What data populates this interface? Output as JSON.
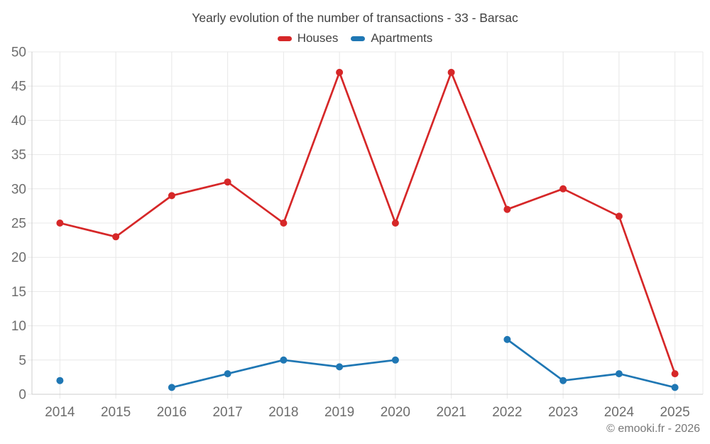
{
  "watermark": "© emooki.fr - 2026",
  "colors": {
    "houses": "#d62728",
    "apartments": "#1f77b4",
    "grid": "#e8e8e8",
    "axis_border": "#cccccc",
    "tick_text": "#6d6d6d",
    "title_text": "#424242"
  },
  "chart_data": {
    "type": "line",
    "title": "Yearly evolution of the number of transactions - 33 - Barsac",
    "categories": [
      "2014",
      "2015",
      "2016",
      "2017",
      "2018",
      "2019",
      "2020",
      "2021",
      "2022",
      "2023",
      "2024",
      "2025"
    ],
    "series": [
      {
        "name": "Houses",
        "color": "#d62728",
        "values": [
          25,
          23,
          29,
          31,
          25,
          47,
          25,
          47,
          27,
          30,
          26,
          3
        ]
      },
      {
        "name": "Apartments",
        "color": "#1f77b4",
        "values": [
          2,
          null,
          1,
          3,
          5,
          4,
          5,
          null,
          8,
          2,
          3,
          1
        ]
      }
    ],
    "xlabel": "",
    "ylabel": "",
    "ylim": [
      0,
      50
    ],
    "yticks": [
      0,
      5,
      10,
      15,
      20,
      25,
      30,
      35,
      40,
      45,
      50
    ],
    "grid": true,
    "legend_position": "top"
  }
}
